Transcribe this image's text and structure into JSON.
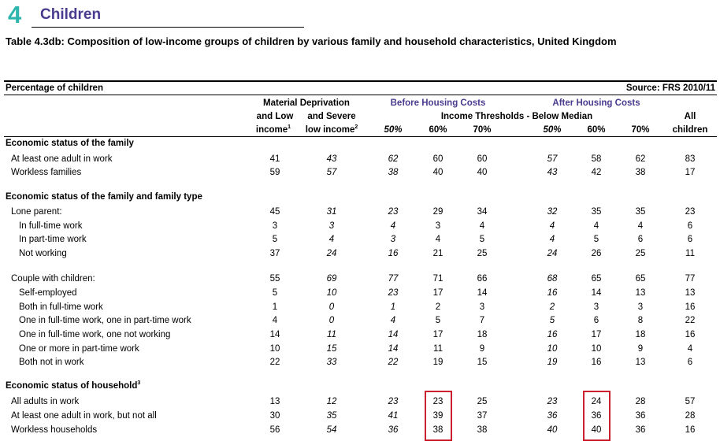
{
  "chapter": {
    "number": "4",
    "title": "Children"
  },
  "table_title": "Table 4.3db: Composition of low-income groups of children by various family and household characteristics, United Kingdom",
  "header": {
    "left_label": "Percentage of children",
    "source": "Source: FRS 2010/11",
    "md_line1": "Material Deprivation",
    "md_col1_line2": "and Low",
    "md_col1_line3": "income",
    "md_col1_sup": "1",
    "md_col2_line2": "and Severe",
    "md_col2_line3": "low income",
    "md_col2_sup": "2",
    "bhc": "Before Housing Costs",
    "ahc": "After Housing Costs",
    "thresholds": "Income Thresholds - Below Median",
    "all_line1": "All",
    "all_line2": "children",
    "pct_cols": [
      "50%",
      "60%",
      "70%",
      "50%",
      "60%",
      "70%"
    ]
  },
  "rows": [
    {
      "type": "section",
      "label": "Economic status of the family"
    },
    {
      "type": "data",
      "indent": 1,
      "label": "At least one adult in work",
      "values": [
        "41",
        "43",
        "62",
        "60",
        "60",
        "57",
        "58",
        "62",
        "83"
      ]
    },
    {
      "type": "data",
      "indent": 1,
      "label": "Workless families",
      "values": [
        "59",
        "57",
        "38",
        "40",
        "40",
        "43",
        "42",
        "38",
        "17"
      ]
    },
    {
      "type": "section",
      "label": "Economic status of the family and family type"
    },
    {
      "type": "data",
      "indent": 1,
      "label": "Lone parent:",
      "values": [
        "45",
        "31",
        "23",
        "29",
        "34",
        "32",
        "35",
        "35",
        "23"
      ]
    },
    {
      "type": "data",
      "indent": 2,
      "label": "In full-time work",
      "values": [
        "3",
        "3",
        "4",
        "3",
        "4",
        "4",
        "4",
        "4",
        "6"
      ]
    },
    {
      "type": "data",
      "indent": 2,
      "label": "In part-time work",
      "values": [
        "5",
        "4",
        "3",
        "4",
        "5",
        "4",
        "5",
        "6",
        "6"
      ]
    },
    {
      "type": "data",
      "indent": 2,
      "label": "Not working",
      "values": [
        "37",
        "24",
        "16",
        "21",
        "25",
        "24",
        "26",
        "25",
        "11"
      ]
    },
    {
      "type": "data",
      "indent": 1,
      "label": "Couple with children:",
      "values": [
        "55",
        "69",
        "77",
        "71",
        "66",
        "68",
        "65",
        "65",
        "77"
      ]
    },
    {
      "type": "data",
      "indent": 2,
      "label": "Self-employed",
      "values": [
        "5",
        "10",
        "23",
        "17",
        "14",
        "16",
        "14",
        "13",
        "13"
      ]
    },
    {
      "type": "data",
      "indent": 2,
      "label": "Both in full-time work",
      "values": [
        "1",
        "0",
        "1",
        "2",
        "3",
        "2",
        "3",
        "3",
        "16"
      ]
    },
    {
      "type": "data",
      "indent": 2,
      "label": "One in full-time work, one in part-time work",
      "values": [
        "4",
        "0",
        "4",
        "5",
        "7",
        "5",
        "6",
        "8",
        "22"
      ]
    },
    {
      "type": "data",
      "indent": 2,
      "label": "One in full-time work, one not working",
      "values": [
        "14",
        "11",
        "14",
        "17",
        "18",
        "16",
        "17",
        "18",
        "16"
      ]
    },
    {
      "type": "data",
      "indent": 2,
      "label": "One or more in part-time work",
      "values": [
        "10",
        "15",
        "14",
        "11",
        "9",
        "10",
        "10",
        "9",
        "4"
      ]
    },
    {
      "type": "data",
      "indent": 2,
      "label": "Both not in work",
      "values": [
        "22",
        "33",
        "22",
        "19",
        "15",
        "19",
        "16",
        "13",
        "6"
      ]
    },
    {
      "type": "section",
      "label": "Economic status of household",
      "sup": "3"
    },
    {
      "type": "data",
      "indent": 1,
      "label": "All adults in work",
      "values": [
        "13",
        "12",
        "23",
        "23",
        "25",
        "23",
        "24",
        "28",
        "57"
      ]
    },
    {
      "type": "data",
      "indent": 1,
      "label": "At least one adult in work, but not all",
      "values": [
        "30",
        "35",
        "41",
        "39",
        "37",
        "36",
        "36",
        "36",
        "28"
      ]
    },
    {
      "type": "data",
      "indent": 1,
      "label": "Workless households",
      "values": [
        "56",
        "54",
        "36",
        "38",
        "38",
        "40",
        "40",
        "36",
        "16"
      ]
    }
  ],
  "italic_columns": [
    1,
    2,
    5
  ],
  "highlight_color": "#cc1f2f"
}
